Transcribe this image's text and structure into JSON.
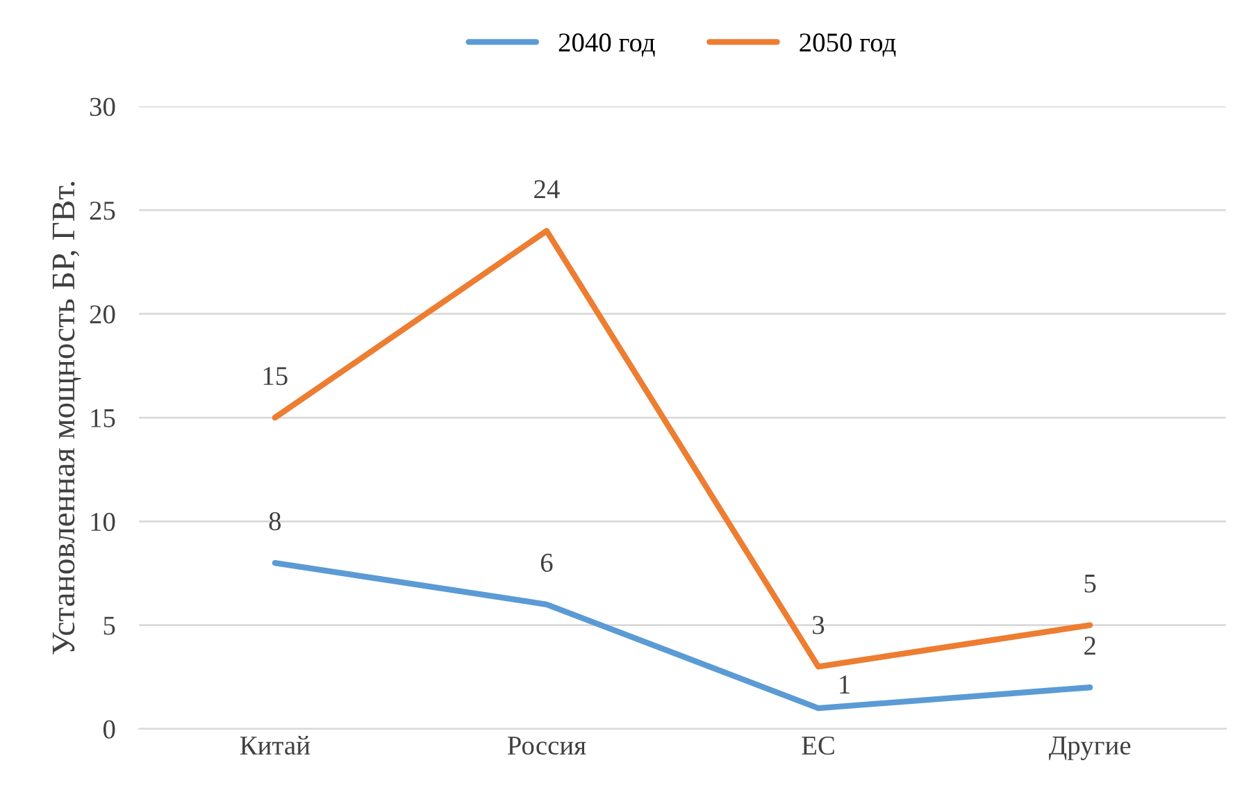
{
  "chart_data": {
    "type": "line",
    "ylabel": "Установленная мощность БР, ГВт.",
    "categories": [
      "Китай",
      "Россия",
      "ЕС",
      "Другие"
    ],
    "series": [
      {
        "name": "2040 год",
        "color": "#5b9bd5",
        "values": [
          8,
          6,
          1,
          2
        ]
      },
      {
        "name": "2050 год",
        "color": "#ed7d31",
        "values": [
          15,
          24,
          3,
          5
        ]
      }
    ],
    "ylim": [
      0,
      30
    ],
    "yticks": [
      0,
      5,
      10,
      15,
      20,
      25,
      30
    ],
    "grid": "y",
    "legend": "top",
    "data_labels": true,
    "marker": "none",
    "line_style": "solid"
  }
}
